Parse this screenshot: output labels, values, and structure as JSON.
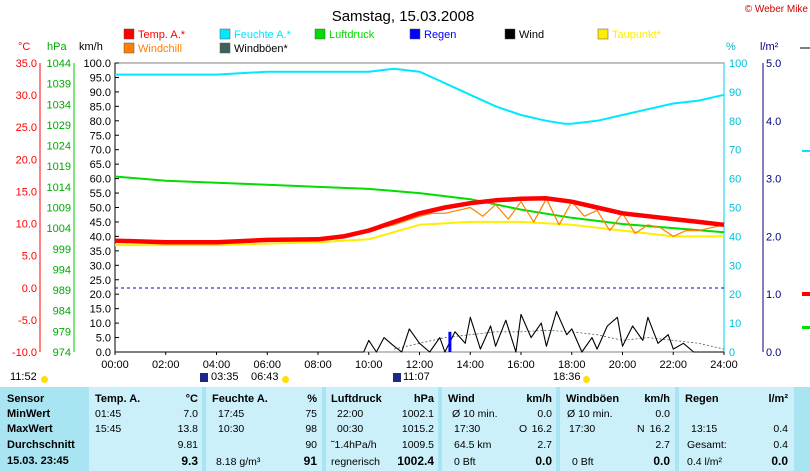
{
  "header": {
    "title": "Samstag, 15.03.2008",
    "copyright": "© Weber Mike"
  },
  "legend": [
    {
      "label": "Temp. A.*",
      "color": "#ff0000"
    },
    {
      "label": "Feuchte A.*",
      "color": "#00e8ff"
    },
    {
      "label": "Luftdruck",
      "color": "#00dd00"
    },
    {
      "label": "Regen",
      "color": "#0000ff"
    },
    {
      "label": "Wind",
      "color": "#000000"
    },
    {
      "label": "Taupunkt*",
      "color": "#ffee00"
    },
    {
      "label": "Windchill",
      "color": "#ff8000"
    },
    {
      "label": "Windböen*",
      "color": "#406060"
    }
  ],
  "axes": {
    "temp_unit": "°C",
    "press_unit": "hPa",
    "wind_unit": "km/h",
    "hum_unit": "%",
    "rain_unit": "l/m²",
    "temp_ticks": [
      "35.0",
      "30.0",
      "25.0",
      "20.0",
      "15.0",
      "10.0",
      "5.0",
      "0.0",
      "-5.0",
      "-10.0"
    ],
    "press_ticks": [
      "1044",
      "1039",
      "1034",
      "1029",
      "1024",
      "1019",
      "1014",
      "1009",
      "1004",
      "999",
      "994",
      "989",
      "984",
      "979",
      "974"
    ],
    "wind_ticks": [
      "100.0",
      "95.0",
      "90.0",
      "85.0",
      "80.0",
      "75.0",
      "70.0",
      "65.0",
      "60.0",
      "55.0",
      "50.0",
      "45.0",
      "40.0",
      "35.0",
      "30.0",
      "25.0",
      "20.0",
      "15.0",
      "10.0",
      "5.0",
      "0.0"
    ],
    "hum_ticks": [
      "100",
      "90",
      "80",
      "70",
      "60",
      "50",
      "40",
      "30",
      "20",
      "10",
      "0"
    ],
    "rain_ticks": [
      "5.0",
      "4.0",
      "3.0",
      "2.0",
      "1.0",
      "0.0"
    ],
    "time_ticks": [
      "00:00",
      "02:00",
      "04:00",
      "06:00",
      "08:00",
      "10:00",
      "12:00",
      "14:00",
      "16:00",
      "18:00",
      "20:00",
      "22:00",
      "24:00"
    ]
  },
  "events": {
    "sunrise_left": "11:52",
    "moonset": "03:35",
    "sunrise": "06:43",
    "moonrise": "11:07",
    "sunset": "18:36"
  },
  "chart_data": {
    "type": "line",
    "title": "Samstag, 15.03.2008",
    "x_unit": "hours",
    "xlim": [
      0,
      24
    ],
    "series": [
      {
        "name": "Temp. A.*",
        "axis": "wind_scale",
        "color": "#ff0000",
        "x": [
          0,
          2,
          4,
          6,
          8,
          9,
          10,
          11,
          12,
          13,
          14,
          15,
          16,
          17,
          18,
          19,
          20,
          21,
          22,
          23,
          24
        ],
        "y": [
          38.5,
          38,
          38,
          38.8,
          39,
          40,
          42,
          45,
          48,
          50,
          51.5,
          52.5,
          53,
          53.2,
          52,
          50,
          48,
          47,
          46,
          45,
          44
        ]
      },
      {
        "name": "Feuchte A.*",
        "axis": "hum",
        "color": "#00e8ff",
        "x": [
          0,
          2,
          4,
          6,
          8,
          10,
          11,
          12,
          12.5,
          13,
          14,
          15,
          16,
          17,
          17.7,
          18,
          19,
          20,
          21,
          22,
          23,
          24
        ],
        "y": [
          96,
          96,
          96,
          97,
          97,
          97,
          98,
          97,
          95,
          93,
          89,
          85,
          82,
          80,
          79,
          79,
          80,
          82,
          84,
          86,
          87,
          89
        ]
      },
      {
        "name": "Luftdruck",
        "axis": "press",
        "color": "#00dd00",
        "x": [
          0,
          2,
          4,
          6,
          8,
          10,
          12,
          14,
          16,
          18,
          20,
          22,
          24
        ],
        "y": [
          1016.5,
          1015.5,
          1015,
          1014.5,
          1014,
          1013.5,
          1012.5,
          1011,
          1008.5,
          1006.5,
          1005,
          1004,
          1003
        ]
      },
      {
        "name": "Taupunkt*",
        "axis": "wind_scale",
        "color": "#ffee00",
        "x": [
          0,
          4,
          8,
          10,
          12,
          14,
          16,
          18,
          20,
          22,
          24
        ],
        "y": [
          37,
          37,
          38,
          39,
          44,
          45,
          45,
          44,
          42,
          40,
          40
        ]
      },
      {
        "name": "Windchill",
        "axis": "wind_scale",
        "color": "#ff8000",
        "x": [
          10,
          11,
          12,
          12.5,
          13,
          13.5,
          14,
          14.5,
          15,
          15.5,
          16,
          16.5,
          17,
          17.5,
          18,
          18.5,
          19,
          19.5,
          20,
          20.5,
          21,
          21.5,
          22,
          22.5,
          23,
          24
        ],
        "y": [
          42,
          44,
          47,
          48,
          48,
          49,
          50,
          47,
          51,
          46,
          52,
          45,
          53,
          44,
          52,
          47,
          49,
          42,
          48,
          41,
          44,
          43,
          40,
          42,
          42,
          44
        ]
      },
      {
        "name": "Wind",
        "axis": "wind_scale",
        "color": "#000000",
        "x": [
          0,
          9.8,
          10,
          10.3,
          10.6,
          11,
          11.3,
          11.6,
          12,
          12.4,
          12.8,
          13,
          13.4,
          13.8,
          14,
          14.4,
          14.8,
          15,
          15.4,
          15.8,
          16,
          16.4,
          16.8,
          17,
          17.4,
          17.8,
          18,
          18.4,
          18.8,
          19,
          19.4,
          19.8,
          20,
          20.4,
          20.8,
          21,
          21.4,
          21.8,
          22,
          22.4,
          22.8,
          23,
          24
        ],
        "y": [
          0,
          0,
          4,
          0,
          5,
          2,
          0,
          8,
          3,
          0,
          5,
          0,
          7,
          3,
          12,
          1,
          9,
          2,
          11,
          0,
          13,
          5,
          10,
          2,
          14,
          6,
          8,
          0,
          5,
          1,
          9,
          12,
          2,
          9,
          4,
          12,
          3,
          6,
          1,
          3,
          0,
          0,
          0
        ]
      },
      {
        "name": "Windböen*",
        "axis": "wind_scale",
        "color": "#406060",
        "x": [
          11,
          12,
          13,
          14,
          15,
          16,
          17,
          18,
          19,
          20,
          21,
          22,
          23,
          24
        ],
        "y": [
          1,
          3,
          5,
          6,
          7,
          7,
          7.5,
          7,
          6,
          4,
          5,
          4,
          3,
          1
        ]
      },
      {
        "name": "Regen",
        "axis": "wind_scale",
        "color": "#0000ff",
        "x": [
          13.2,
          13.2
        ],
        "y": [
          0,
          7
        ]
      }
    ]
  },
  "table": {
    "col1": {
      "header": "Sensor",
      "min": "MinWert",
      "max": "MaxWert",
      "avg": "Durchschnitt",
      "cur": "15.03. 23:45"
    },
    "col2": {
      "header": "Temp. A.",
      "unit": "°C",
      "min_time": "01:45",
      "min_val": "7.0",
      "max_time": "15:45",
      "max_val": "13.8",
      "avg_val": "9.81",
      "cur_val": "9.3"
    },
    "col3": {
      "header": "Feuchte A.",
      "unit": "%",
      "min_time": "17:45",
      "min_val": "75",
      "max_time": "10:30",
      "max_val": "98",
      "avg_val": "90",
      "cur_sub": "8.18 g/m³",
      "cur_val": "91"
    },
    "col4": {
      "header": "Luftdruck",
      "unit": "hPa",
      "min_time": "22:00",
      "min_val": "1002.1",
      "max_time": "00:30",
      "max_val": "1015.2",
      "avg_sub": "˜1.4hPa/h",
      "avg_val": "1009.5",
      "cur_sub": "regnerisch",
      "cur_val": "1002.4"
    },
    "col5": {
      "header": "Wind",
      "unit": "km/h",
      "min_label": "Ø 10 min.",
      "min_val": "0.0",
      "max_time": "17:30",
      "max_dir": "O",
      "max_val": "16.2",
      "avg_sub": "64.5 km",
      "avg_val": "2.7",
      "cur_sub": "0 Bft",
      "cur_val": "0.0"
    },
    "col6": {
      "header": "Windböen",
      "unit": "km/h",
      "min_label": "Ø 10 min.",
      "min_val": "0.0",
      "max_time": "17:30",
      "max_dir": "N",
      "max_val": "16.2",
      "avg_val": "2.7",
      "cur_sub": "0 Bft",
      "cur_val": "0.0"
    },
    "col7": {
      "header": "Regen",
      "unit": "l/m²",
      "max_time": "13:15",
      "max_val": "0.4",
      "avg_sub": "Gesamt:",
      "avg_val": "0.4",
      "cur_sub": "0.4 l/m²",
      "cur_val": "0.0"
    }
  }
}
